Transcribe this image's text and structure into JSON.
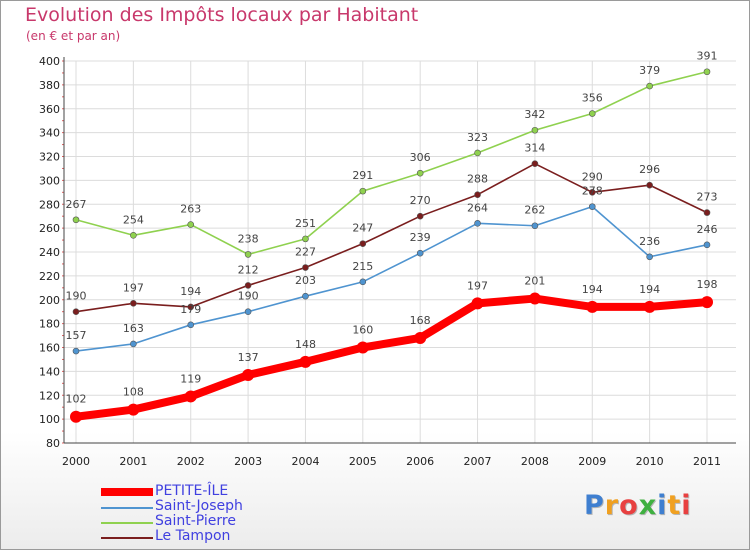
{
  "chart_data": {
    "type": "line",
    "title": "Evolution des Impôts locaux par Habitant",
    "subtitle": "(en € et par an)",
    "xlabel": "",
    "ylabel": "",
    "x": [
      "2000",
      "2001",
      "2002",
      "2003",
      "2004",
      "2005",
      "2006",
      "2007",
      "2008",
      "2009",
      "2010",
      "2011"
    ],
    "ylim": [
      80,
      400
    ],
    "yticks": [
      "80",
      "100",
      "120",
      "140",
      "160",
      "180",
      "200",
      "220",
      "240",
      "260",
      "280",
      "300",
      "320",
      "340",
      "360",
      "380",
      "400"
    ],
    "grid": true,
    "legend_position": "bottom-left",
    "series": [
      {
        "name": "Saint-Pierre",
        "color": "#8fd14f",
        "values": [
          267,
          254,
          263,
          238,
          251,
          291,
          306,
          323,
          342,
          356,
          379,
          391
        ]
      },
      {
        "name": "Le Tampon",
        "color": "#7a1e1e",
        "values": [
          190,
          197,
          194,
          212,
          227,
          247,
          270,
          288,
          314,
          290,
          296,
          273
        ]
      },
      {
        "name": "Saint-Joseph",
        "color": "#4f94d0",
        "values": [
          157,
          163,
          179,
          190,
          203,
          215,
          239,
          264,
          262,
          278,
          236,
          246
        ]
      },
      {
        "name": "PETITE-ÎLE",
        "color": "#ff0000",
        "values": [
          102,
          108,
          119,
          137,
          148,
          160,
          168,
          197,
          201,
          194,
          194,
          198
        ]
      }
    ]
  },
  "legend": {
    "items": [
      {
        "label": "PETITE-ÎLE",
        "color": "#ff0000"
      },
      {
        "label": "Saint-Joseph",
        "color": "#4f94d0"
      },
      {
        "label": "Saint-Pierre",
        "color": "#8fd14f"
      },
      {
        "label": "Le Tampon",
        "color": "#7a1e1e"
      }
    ]
  },
  "logo": {
    "text": "Proxiti",
    "letter_colors": [
      "#3f7fd0",
      "#f0a020",
      "#e84040",
      "#3fb040",
      "#3f7fd0",
      "#f0a020",
      "#e84040"
    ]
  }
}
